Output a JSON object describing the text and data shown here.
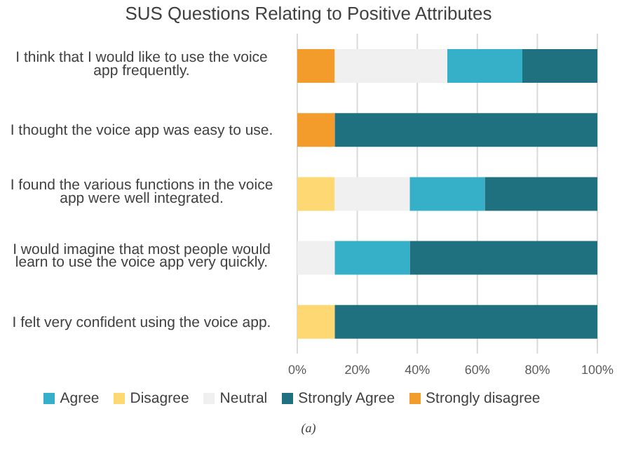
{
  "chart_data": {
    "type": "bar",
    "orientation": "horizontal",
    "stacked": true,
    "title": "SUS Questions Relating to Positive Attributes",
    "categories": [
      "I think that I would like to use the voice app frequently.",
      "I thought the voice app was easy to use.",
      "I found the various functions in the voice app were well integrated.",
      "I would imagine that most people would learn to use the voice app very quickly.",
      "I felt very confident using the voice app."
    ],
    "series": [
      {
        "name": "Strongly disagree",
        "color": "#f39c2c",
        "values": [
          12.5,
          12.5,
          0,
          0,
          0
        ]
      },
      {
        "name": "Disagree",
        "color": "#fdd873",
        "values": [
          0,
          0,
          12.5,
          0,
          12.5
        ]
      },
      {
        "name": "Neutral",
        "color": "#f0f0f0",
        "values": [
          37.5,
          0,
          25,
          12.5,
          0
        ]
      },
      {
        "name": "Agree",
        "color": "#36b0c8",
        "values": [
          25,
          0,
          25,
          25,
          0
        ]
      },
      {
        "name": "Strongly Agree",
        "color": "#20717f",
        "values": [
          25,
          87.5,
          37.5,
          62.5,
          87.5
        ]
      }
    ],
    "xlim": [
      0,
      100
    ],
    "xticks": [
      {
        "value": 0,
        "label": "0%"
      },
      {
        "value": 20,
        "label": "20%"
      },
      {
        "value": 40,
        "label": "40%"
      },
      {
        "value": 60,
        "label": "60%"
      },
      {
        "value": 80,
        "label": "80%"
      },
      {
        "value": 100,
        "label": "100%"
      }
    ],
    "grid": "x",
    "legend": "bottom",
    "annotations": [
      "(a)"
    ]
  }
}
